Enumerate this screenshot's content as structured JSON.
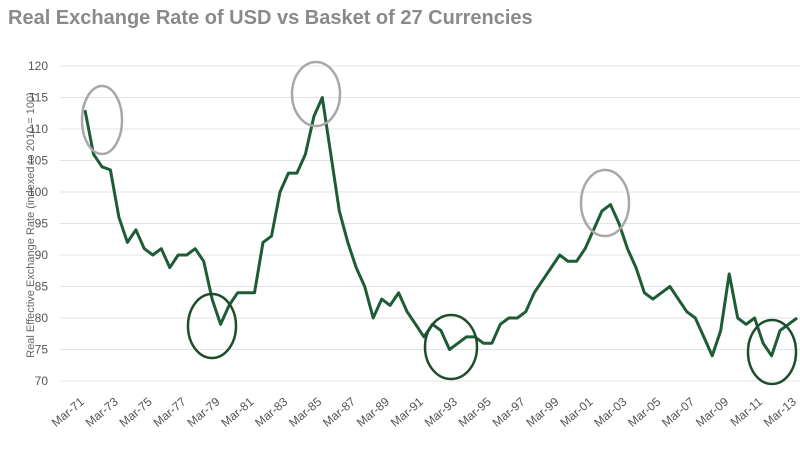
{
  "chart_data": {
    "type": "line",
    "title": "Real Exchange Rate of USD vs Basket of 27 Currencies",
    "y_label": "Real Effective Exchange Rate (indexed to 2010 = 100)",
    "x": [
      "Mar-71",
      "Sep-71",
      "Mar-72",
      "Sep-72",
      "Mar-73",
      "Sep-73",
      "Mar-74",
      "Sep-74",
      "Mar-75",
      "Sep-75",
      "Mar-76",
      "Sep-76",
      "Mar-77",
      "Sep-77",
      "Mar-78",
      "Sep-78",
      "Mar-79",
      "Sep-79",
      "Mar-80",
      "Sep-80",
      "Mar-81",
      "Sep-81",
      "Mar-82",
      "Sep-82",
      "Mar-83",
      "Sep-83",
      "Mar-84",
      "Sep-84",
      "Mar-85",
      "Sep-85",
      "Mar-86",
      "Sep-86",
      "Mar-87",
      "Sep-87",
      "Mar-88",
      "Sep-88",
      "Mar-89",
      "Sep-89",
      "Mar-90",
      "Sep-90",
      "Mar-91",
      "Sep-91",
      "Mar-92",
      "Sep-92",
      "Mar-93",
      "Sep-93",
      "Mar-94",
      "Sep-94",
      "Mar-95",
      "Sep-95",
      "Mar-96",
      "Sep-96",
      "Mar-97",
      "Sep-97",
      "Mar-98",
      "Sep-98",
      "Mar-99",
      "Sep-99",
      "Mar-00",
      "Sep-00",
      "Mar-01",
      "Sep-01",
      "Mar-02",
      "Sep-02",
      "Mar-03",
      "Sep-03",
      "Mar-04",
      "Sep-04",
      "Mar-05",
      "Sep-05",
      "Mar-06",
      "Sep-06",
      "Mar-07",
      "Sep-07",
      "Mar-08",
      "Sep-08",
      "Mar-09",
      "Sep-09",
      "Mar-10",
      "Sep-10",
      "Mar-11",
      "Sep-11",
      "Mar-12",
      "Sep-12",
      "Mar-13"
    ],
    "series": [
      {
        "name": "Real Effective Exchange Rate",
        "color": "#1e5c36",
        "values": [
          113,
          106,
          104,
          103.5,
          96,
          92,
          94,
          91,
          90,
          91,
          88,
          90,
          90,
          91,
          89,
          83,
          79,
          82,
          84,
          84,
          84,
          92,
          93,
          100,
          103,
          103,
          106,
          112,
          115,
          106,
          97,
          92,
          88,
          85,
          80,
          83,
          82,
          84,
          81,
          79,
          77,
          79,
          78,
          75,
          76,
          77,
          77,
          76,
          76,
          79,
          80,
          80,
          81,
          84,
          86,
          88,
          90,
          89,
          89,
          91,
          94,
          97,
          98,
          95,
          91,
          88,
          84,
          83,
          84,
          85,
          83,
          81,
          80,
          77,
          74,
          78,
          87,
          80,
          79,
          80,
          76,
          74,
          78,
          79,
          80
        ]
      }
    ],
    "xticks": [
      "Mar-71",
      "Mar-73",
      "Mar-75",
      "Mar-77",
      "Mar-79",
      "Mar-81",
      "Mar-83",
      "Mar-85",
      "Mar-87",
      "Mar-89",
      "Mar-91",
      "Mar-93",
      "Mar-95",
      "Mar-97",
      "Mar-99",
      "Mar-01",
      "Mar-03",
      "Mar-05",
      "Mar-07",
      "Mar-09",
      "Mar-11",
      "Mar-13"
    ],
    "ylim": [
      70,
      120
    ],
    "yticks": [
      70,
      75,
      80,
      85,
      90,
      95,
      100,
      105,
      110,
      115,
      120
    ],
    "grid": true
  }
}
